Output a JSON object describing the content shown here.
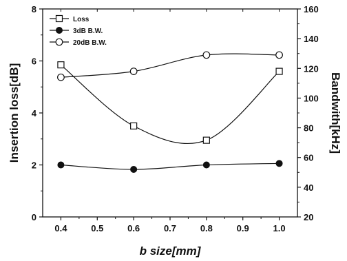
{
  "chart_data": {
    "type": "line",
    "xlabel": "b size[mm]",
    "ylabel_left": "Insertion loss[dB]",
    "ylabel_right": "Bandwith[kHz]",
    "xlim": [
      0.35,
      1.05
    ],
    "ylim_left": [
      0,
      8
    ],
    "ylim_right": [
      20,
      160
    ],
    "x_ticks": [
      "0.4",
      "0.5",
      "0.6",
      "0.7",
      "0.8",
      "0.9",
      "1.0"
    ],
    "y_ticks_left": [
      "0",
      "2",
      "4",
      "6",
      "8"
    ],
    "y_ticks_right": [
      "20",
      "40",
      "60",
      "80",
      "100",
      "120",
      "140",
      "160"
    ],
    "legend_position": "top-left",
    "series": [
      {
        "name": "Loss",
        "axis": "left",
        "marker": "open-square",
        "x": [
          0.4,
          0.6,
          0.8,
          1.0
        ],
        "y": [
          5.85,
          3.5,
          2.95,
          5.6
        ]
      },
      {
        "name": "3dB B.W.",
        "axis": "right",
        "marker": "filled-circle",
        "x": [
          0.4,
          0.6,
          0.8,
          1.0
        ],
        "y": [
          55,
          52,
          55,
          56
        ]
      },
      {
        "name": "20dB B.W.",
        "axis": "right",
        "marker": "open-circle",
        "x": [
          0.4,
          0.6,
          0.8,
          1.0
        ],
        "y": [
          114,
          118,
          129,
          129
        ]
      }
    ]
  }
}
